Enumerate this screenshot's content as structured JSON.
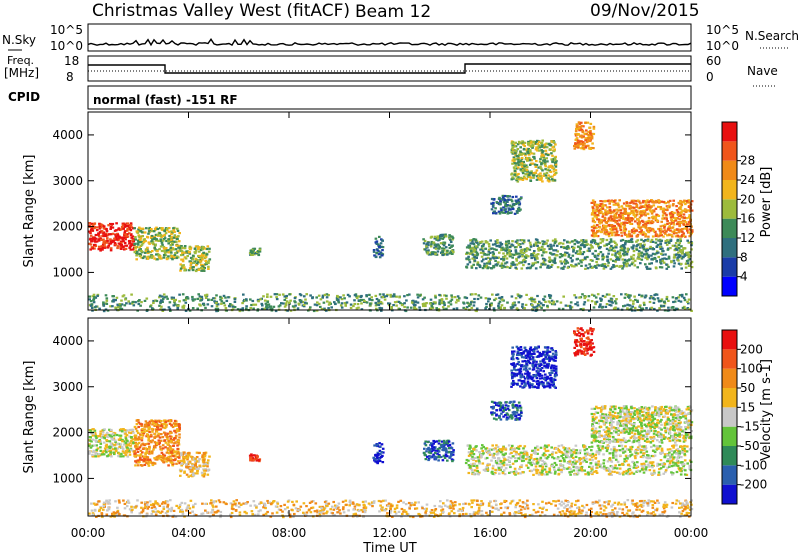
{
  "header": {
    "title": "Christmas Valley West (fitACF)",
    "beam": "Beam 12",
    "date": "09/Nov/2015"
  },
  "noise_panel": {
    "left_label": "N.Sky",
    "right_label": "N.Search",
    "tick_top": "10^5",
    "tick_bottom": "10^0"
  },
  "freq_panel": {
    "left_label_line1": "Freq.",
    "left_label_line2": "[MHz]",
    "right_label": "Nave",
    "left_ticks": [
      "18",
      "8"
    ],
    "right_ticks": [
      "60",
      "0"
    ]
  },
  "cpid_panel": {
    "left_label": "CPID",
    "mode_text": "normal (fast) -151 RF"
  },
  "chart_data": [
    {
      "type": "heatmap",
      "name": "Power",
      "xlabel": "",
      "ylabel": "Slant Range [km]",
      "x_range_hours": [
        0,
        24
      ],
      "ylim": [
        180,
        4500
      ],
      "y_ticks": [
        1000,
        2000,
        3000,
        4000
      ],
      "colorbar": {
        "label": "Power [dB]",
        "ticks": [
          "4",
          "8",
          "12",
          "16",
          "20",
          "24",
          "28"
        ],
        "colors": [
          "#0000ff",
          "#1a3ca8",
          "#2f6f7e",
          "#3d8a58",
          "#9dbb3c",
          "#f2b51c",
          "#f08a18",
          "#f0551b",
          "#e81010"
        ]
      },
      "regions": [
        {
          "t": [
            0.0,
            1.8
          ],
          "r": [
            1500,
            2100
          ],
          "level": 8
        },
        {
          "t": [
            1.8,
            3.6
          ],
          "r": [
            1300,
            2000
          ],
          "level": 4
        },
        {
          "t": [
            3.6,
            4.8
          ],
          "r": [
            1050,
            1600
          ],
          "level": 4
        },
        {
          "t": [
            6.4,
            6.8
          ],
          "r": [
            1400,
            1560
          ],
          "level": 3
        },
        {
          "t": [
            11.3,
            11.7
          ],
          "r": [
            1350,
            1800
          ],
          "level": 2
        },
        {
          "t": [
            13.3,
            14.5
          ],
          "r": [
            1400,
            1850
          ],
          "level": 3
        },
        {
          "t": [
            15.0,
            24.0
          ],
          "r": [
            1100,
            1750
          ],
          "level": 3
        },
        {
          "t": [
            16.0,
            17.2
          ],
          "r": [
            2300,
            2700
          ],
          "level": 2
        },
        {
          "t": [
            16.8,
            18.6
          ],
          "r": [
            3000,
            3900
          ],
          "level": 4
        },
        {
          "t": [
            19.3,
            20.1
          ],
          "r": [
            3700,
            4300
          ],
          "level": 6
        },
        {
          "t": [
            20.0,
            24.0
          ],
          "r": [
            1800,
            2600
          ],
          "level": 6
        },
        {
          "t": [
            0.0,
            24.0
          ],
          "r": [
            180,
            550
          ],
          "level": 3
        }
      ]
    },
    {
      "type": "heatmap",
      "name": "Velocity",
      "xlabel": "Time UT",
      "ylabel": "Slant Range [km]",
      "x_range_hours": [
        0,
        24
      ],
      "x_ticks": [
        "00:00",
        "04:00",
        "08:00",
        "12:00",
        "16:00",
        "20:00",
        "00:00"
      ],
      "ylim": [
        180,
        4500
      ],
      "y_ticks": [
        1000,
        2000,
        3000,
        4000
      ],
      "colorbar": {
        "label": "Velocity [m s-1]",
        "ticks": [
          "200",
          "100",
          "50",
          "15",
          "-15",
          "-50",
          "-100",
          "-200"
        ],
        "colors": [
          "#1010d0",
          "#2a5fae",
          "#2f8a58",
          "#63c43a",
          "#c8c8c8",
          "#f2b51c",
          "#f08a18",
          "#f0551b",
          "#e81010"
        ]
      },
      "regions": [
        {
          "t": [
            0.0,
            1.8
          ],
          "r": [
            1500,
            2100
          ],
          "level": 4
        },
        {
          "t": [
            1.8,
            3.6
          ],
          "r": [
            1300,
            2300
          ],
          "level": 6
        },
        {
          "t": [
            3.6,
            4.8
          ],
          "r": [
            1050,
            1600
          ],
          "level": 5
        },
        {
          "t": [
            6.4,
            6.8
          ],
          "r": [
            1400,
            1560
          ],
          "level": 8
        },
        {
          "t": [
            11.3,
            11.7
          ],
          "r": [
            1350,
            1800
          ],
          "level": 0
        },
        {
          "t": [
            13.3,
            14.5
          ],
          "r": [
            1400,
            1850
          ],
          "level": 1
        },
        {
          "t": [
            15.0,
            24.0
          ],
          "r": [
            1100,
            1750
          ],
          "level": 4
        },
        {
          "t": [
            16.0,
            17.2
          ],
          "r": [
            2300,
            2700
          ],
          "level": 1
        },
        {
          "t": [
            16.8,
            18.6
          ],
          "r": [
            3000,
            3900
          ],
          "level": 0
        },
        {
          "t": [
            19.3,
            20.1
          ],
          "r": [
            3700,
            4300
          ],
          "level": 8
        },
        {
          "t": [
            20.0,
            24.0
          ],
          "r": [
            1800,
            2600
          ],
          "level": 4
        },
        {
          "t": [
            0.0,
            24.0
          ],
          "r": [
            180,
            550
          ],
          "level": 5
        }
      ]
    }
  ]
}
